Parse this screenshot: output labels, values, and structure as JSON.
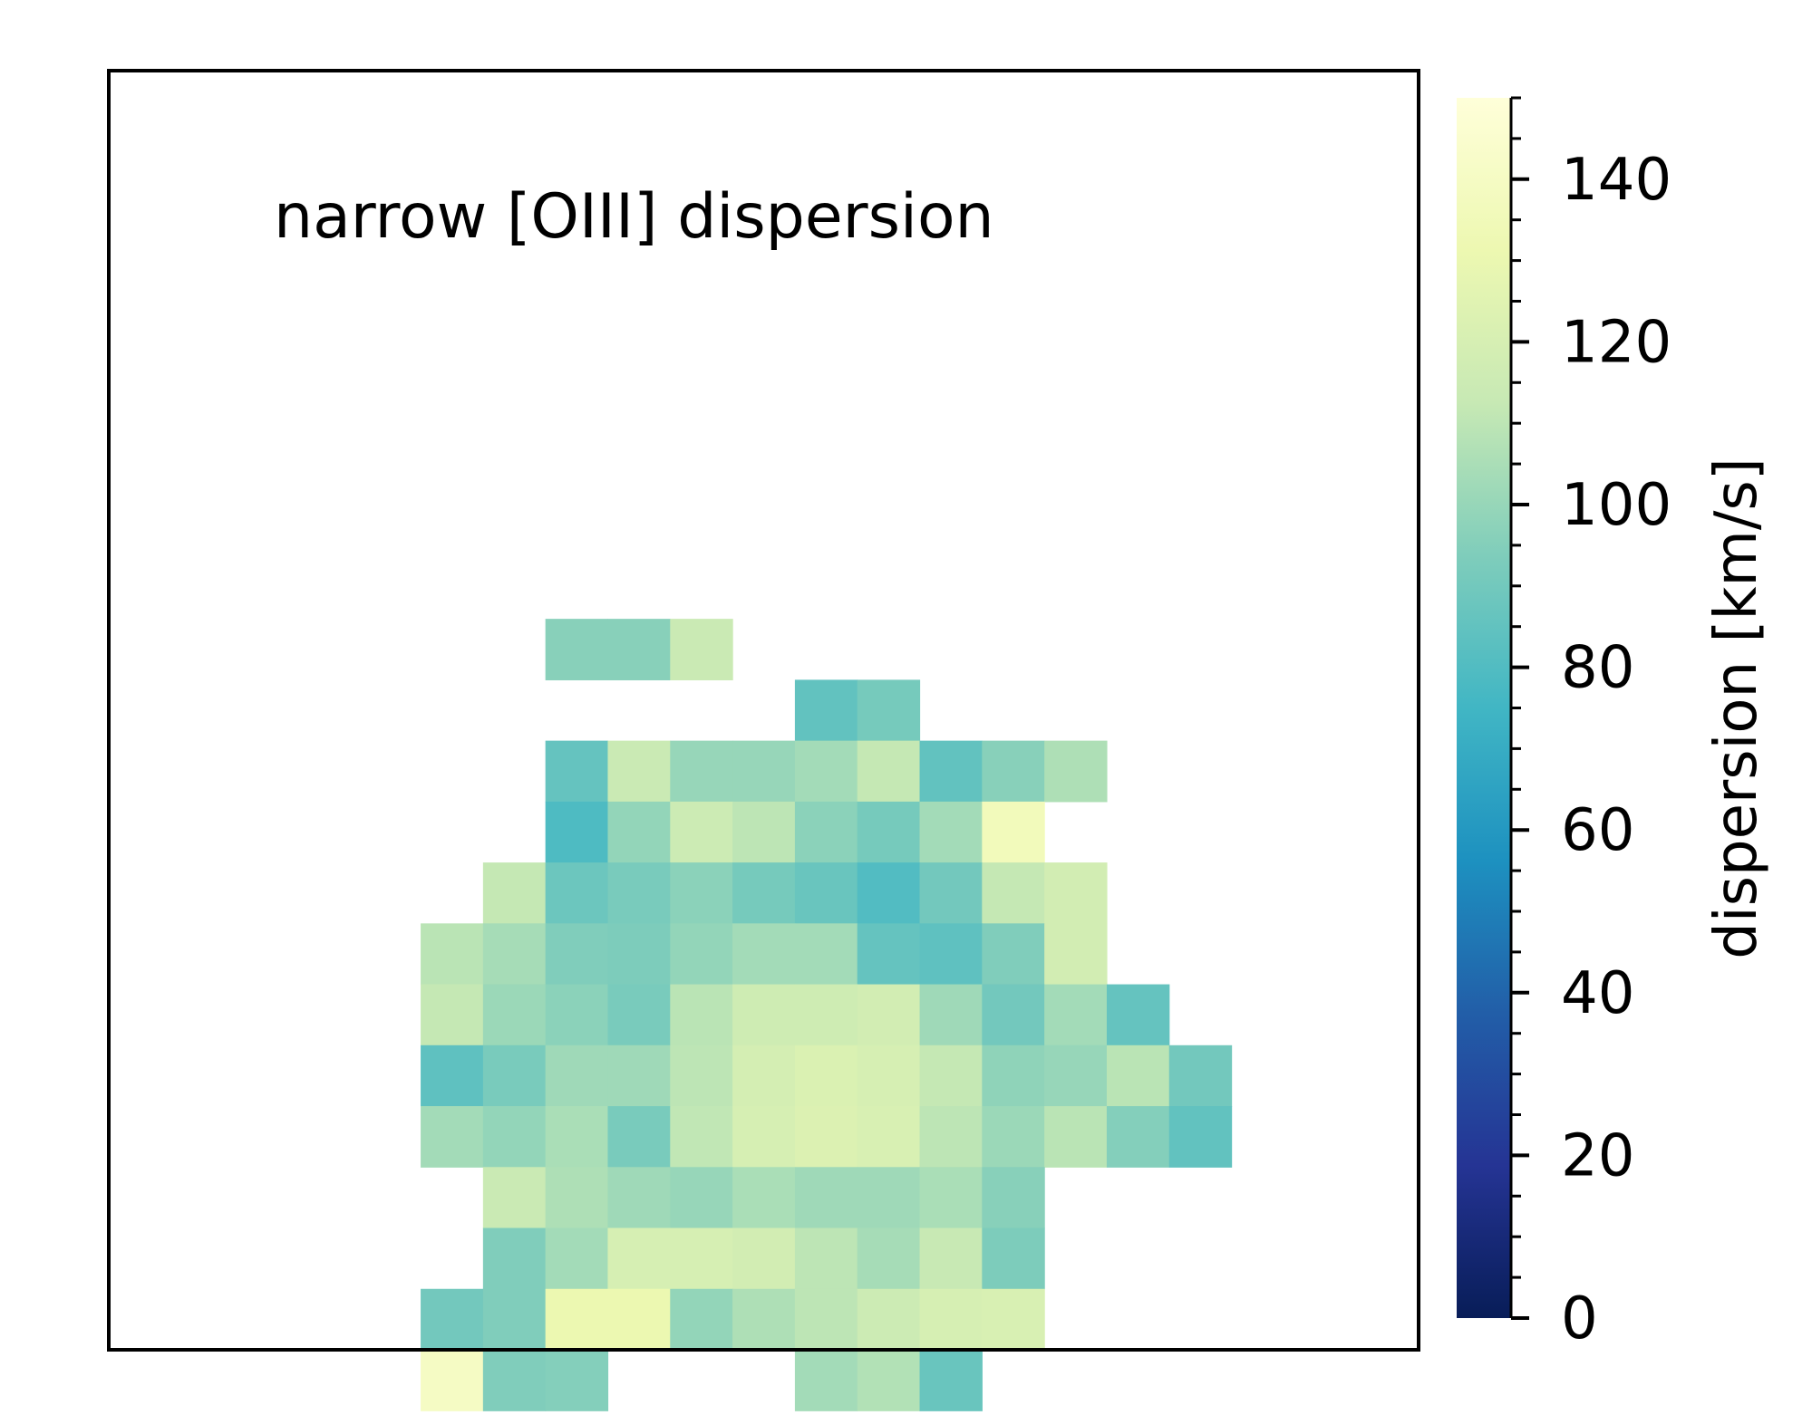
{
  "chart_data": {
    "type": "heatmap",
    "title": "narrow [OIII] dispersion",
    "xlabel": "",
    "ylabel": "",
    "grid": false,
    "colormap": "YlGnBu_r",
    "colorbar": {
      "label": "dispersion [km/s]",
      "range": [
        0,
        150
      ],
      "ticks": [
        "0",
        "20",
        "40",
        "60",
        "80",
        "100",
        "120",
        "140"
      ],
      "tick_values": [
        0,
        20,
        40,
        60,
        80,
        100,
        120,
        140
      ]
    },
    "grid_size": [
      21,
      21
    ],
    "first_row": 5,
    "first_col": 5,
    "values": [
      [
        null,
        null,
        null,
        null,
        null,
        null,
        null,
        null,
        null,
        null,
        null,
        null,
        null,
        null,
        null
      ],
      [
        null,
        null,
        null,
        null,
        null,
        null,
        null,
        null,
        null,
        null,
        null,
        null,
        null,
        null,
        null
      ],
      [
        null,
        null,
        null,
        null,
        null,
        null,
        null,
        null,
        null,
        null,
        null,
        null,
        null,
        null,
        null
      ],
      [
        null,
        null,
        null,
        null,
        null,
        null,
        null,
        null,
        null,
        null,
        null,
        null,
        null,
        null,
        null
      ],
      [
        null,
        null,
        96,
        96,
        114,
        null,
        null,
        null,
        null,
        null,
        null,
        null,
        null,
        null,
        null
      ],
      [
        null,
        null,
        null,
        null,
        null,
        null,
        85,
        91,
        null,
        null,
        null,
        null,
        null,
        null,
        null
      ],
      [
        null,
        null,
        86,
        114,
        100,
        100,
        103,
        112,
        85,
        96,
        106,
        null,
        null,
        null,
        null
      ],
      [
        null,
        null,
        79,
        99,
        115,
        110,
        97,
        91,
        103,
        136,
        null,
        null,
        null,
        null,
        null
      ],
      [
        null,
        112,
        88,
        92,
        97,
        91,
        87,
        80,
        90,
        112,
        118,
        null,
        null,
        null,
        null
      ],
      [
        109,
        104,
        94,
        93,
        99,
        103,
        103,
        86,
        84,
        94,
        118,
        null,
        null,
        null,
        null
      ],
      [
        112,
        101,
        97,
        92,
        109,
        116,
        116,
        118,
        102,
        90,
        103,
        86,
        null,
        null,
        null
      ],
      [
        84,
        92,
        102,
        102,
        110,
        119,
        122,
        120,
        112,
        98,
        100,
        109,
        90,
        null,
        null
      ],
      [
        103,
        99,
        105,
        92,
        111,
        120,
        123,
        121,
        110,
        101,
        109,
        95,
        85,
        null,
        null
      ],
      [
        null,
        114,
        106,
        102,
        100,
        105,
        102,
        102,
        105,
        96,
        null,
        null,
        null,
        null,
        null
      ],
      [
        null,
        94,
        103,
        120,
        120,
        118,
        110,
        104,
        113,
        93,
        null,
        null,
        null,
        null,
        null
      ],
      [
        90,
        94,
        131,
        131,
        99,
        106,
        110,
        115,
        120,
        121,
        null,
        null,
        null,
        null,
        null
      ],
      [
        140,
        94,
        95,
        null,
        null,
        null,
        103,
        107,
        87,
        null,
        null,
        null,
        null,
        null,
        null
      ]
    ]
  }
}
